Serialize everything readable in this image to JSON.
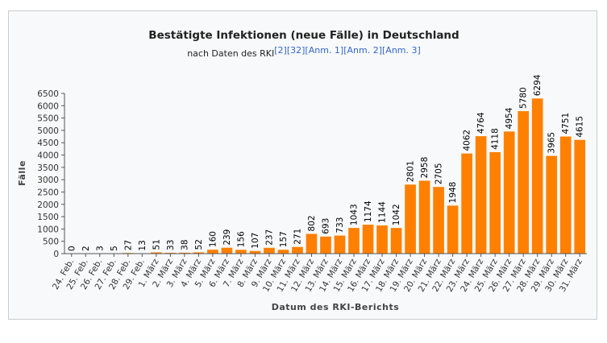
{
  "chart_data": {
    "type": "bar",
    "title": "Bestätigte Infektionen (neue Fälle) in Deutschland",
    "subtitle": "nach Daten des RKI",
    "subtitle_refs": "[2][32][Anm. 1][Anm. 2][Anm. 3]",
    "xlabel": "Datum des RKI-Berichts",
    "ylabel": "Fälle",
    "ylim": [
      0,
      6500
    ],
    "yticks": [
      0,
      500,
      1000,
      1500,
      2000,
      2500,
      3000,
      3500,
      4000,
      4500,
      5000,
      5500,
      6000,
      6500
    ],
    "bar_color": "#ff8000",
    "categories": [
      "24. Feb.",
      "25. Feb.",
      "26. Feb.",
      "27. Feb.",
      "28. Feb.",
      "29. Feb.",
      "1. März",
      "2. März",
      "3. März",
      "4. März",
      "5. März",
      "6. März",
      "7. März",
      "8. März",
      "9. März",
      "10. März",
      "11. März",
      "12. März",
      "13. März",
      "14. März",
      "15. März",
      "16. März",
      "17. März",
      "18. März",
      "19. März",
      "20. März",
      "21. März",
      "22. März",
      "23. März",
      "24. März",
      "25. März",
      "26. März",
      "27. März",
      "28. März",
      "29. März",
      "30. März",
      "31. März"
    ],
    "values": [
      0,
      2,
      3,
      5,
      27,
      13,
      51,
      33,
      38,
      52,
      160,
      239,
      156,
      107,
      237,
      157,
      271,
      802,
      693,
      733,
      1043,
      1174,
      1144,
      1042,
      2801,
      2958,
      2705,
      1948,
      4062,
      4764,
      4118,
      4954,
      5780,
      6294,
      3965,
      4751,
      4615
    ]
  }
}
